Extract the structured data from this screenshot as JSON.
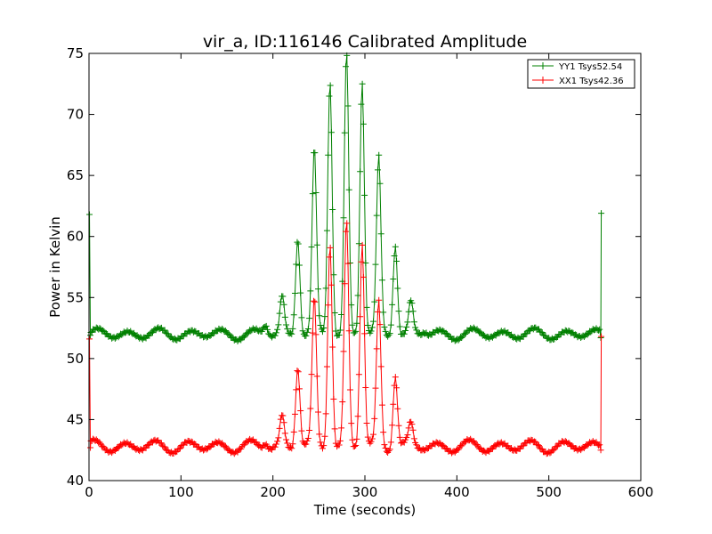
{
  "chart_data": {
    "type": "line",
    "title": "vir_a, ID:116146 Calibrated Amplitude",
    "xlabel": "Time (seconds)",
    "ylabel": "Power in Kelvin",
    "xlim": [
      0,
      600
    ],
    "ylim": [
      40,
      75
    ],
    "xticks": [
      0,
      100,
      200,
      300,
      400,
      500,
      600
    ],
    "yticks": [
      40,
      45,
      50,
      55,
      60,
      65,
      70,
      75
    ],
    "grid": false,
    "legend_position": "top-right",
    "marker": "plus",
    "series": [
      {
        "name": "YY1 Tsys52.54",
        "color": "#008000",
        "baseline": 52.0,
        "ripple_amplitude": 0.35,
        "spikes": [
          {
            "x": 192,
            "peak": 52.8
          },
          {
            "x": 210,
            "peak": 55.0
          },
          {
            "x": 227,
            "peak": 60.1
          },
          {
            "x": 245,
            "peak": 66.8
          },
          {
            "x": 262,
            "peak": 73.0
          },
          {
            "x": 280,
            "peak": 75.0
          },
          {
            "x": 297,
            "peak": 72.8
          },
          {
            "x": 315,
            "peak": 66.2
          },
          {
            "x": 333,
            "peak": 59.6
          },
          {
            "x": 350,
            "peak": 54.5
          },
          {
            "x": 365,
            "peak": 52.3
          }
        ],
        "start_value": 61.8,
        "end_value": 61.9,
        "end_time": 557
      },
      {
        "name": "XX1 Tsys42.36",
        "color": "#ff0000",
        "baseline": 42.8,
        "ripple_amplitude": 0.4,
        "spikes": [
          {
            "x": 192,
            "peak": 43.3
          },
          {
            "x": 210,
            "peak": 45.2
          },
          {
            "x": 227,
            "peak": 49.5
          },
          {
            "x": 245,
            "peak": 54.5
          },
          {
            "x": 262,
            "peak": 59.8
          },
          {
            "x": 280,
            "peak": 61.1
          },
          {
            "x": 297,
            "peak": 59.5
          },
          {
            "x": 315,
            "peak": 54.5
          },
          {
            "x": 333,
            "peak": 48.8
          },
          {
            "x": 350,
            "peak": 44.5
          }
        ],
        "start_value": 51.6,
        "end_value": 51.8,
        "end_time": 557
      }
    ]
  }
}
